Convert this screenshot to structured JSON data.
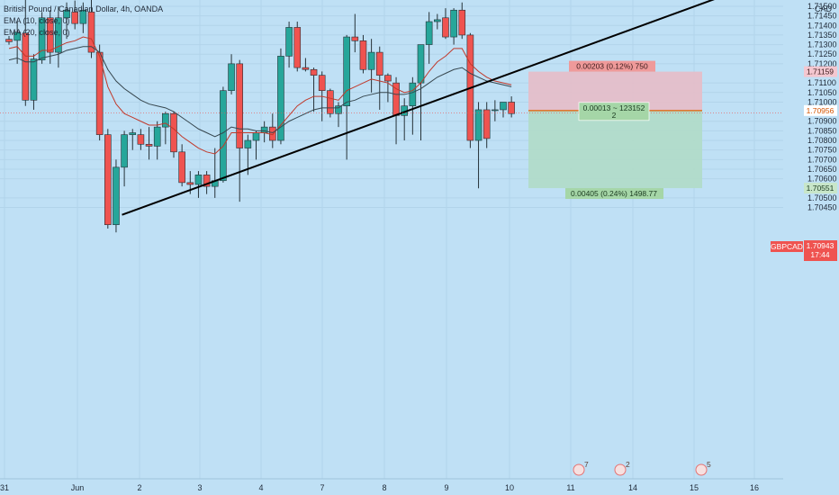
{
  "legend": {
    "symbol_line": "British Pound / Canadian Dollar, 4h, OANDA",
    "ema10": "EMA (10, close, 0)",
    "ema20": "EMA (20, close, 0)"
  },
  "price_axis": {
    "currency": "CAD",
    "labels": [
      "1.71500",
      "1.71450",
      "1.71400",
      "1.71350",
      "1.71300",
      "1.71250",
      "1.71200",
      "1.71100",
      "1.71050",
      "1.71000",
      "1.70900",
      "1.70850",
      "1.70800",
      "1.70750",
      "1.70700",
      "1.70650",
      "1.70600",
      "1.70500",
      "1.70450"
    ]
  },
  "time_axis": {
    "labels": [
      "31",
      "Jun",
      "2",
      "3",
      "4",
      "7",
      "8",
      "9",
      "10",
      "11",
      "14",
      "15",
      "16"
    ]
  },
  "position_tool": {
    "target_label": "0.00203 (0.12%) 750",
    "entry_label_1": "0.00013 ~ 123152",
    "entry_label_2": "2",
    "stop_label": "0.00405 (0.24%) 1498.77"
  },
  "price_tags": {
    "top": "1.71159",
    "entry": "1.70956",
    "symbol": "GBPCAD",
    "current": "1.70943",
    "countdown": "17:44",
    "bottom": "1.70551"
  },
  "events": [
    "7",
    "2",
    "5"
  ],
  "colors": {
    "background": "#bfe0f5",
    "bull": "#26a69a",
    "bear": "#ef5350",
    "ema10": "#c0392b",
    "ema20": "#37474f",
    "trendline": "#000000",
    "target_zone": "#e7bcc8",
    "stop_zone": "#b0dcc8"
  },
  "chart_data": {
    "type": "candlestick",
    "symbol": "GBPCAD",
    "timeframe": "4h",
    "series": [
      {
        "name": "GBPCAD",
        "ohlc": [
          [
            1.71328,
            1.71345,
            1.713,
            1.71315
          ],
          [
            1.71322,
            1.7142,
            1.712,
            1.71365
          ],
          [
            1.7136,
            1.7154,
            1.7098,
            1.7101
          ],
          [
            1.7101,
            1.7125,
            1.7096,
            1.71225
          ],
          [
            1.7122,
            1.7147,
            1.712,
            1.7144
          ],
          [
            1.7144,
            1.7148,
            1.712,
            1.7126
          ],
          [
            1.7126,
            1.715,
            1.7118,
            1.7144
          ],
          [
            1.7144,
            1.7152,
            1.7133,
            1.7148
          ],
          [
            1.7147,
            1.7153,
            1.7138,
            1.7141
          ],
          [
            1.7141,
            1.7152,
            1.7136,
            1.7148
          ],
          [
            1.7147,
            1.7154,
            1.7123,
            1.7126
          ],
          [
            1.7126,
            1.713,
            1.708,
            1.7083
          ],
          [
            1.7083,
            1.7086,
            1.7034,
            1.7036
          ],
          [
            1.7036,
            1.707,
            1.7032,
            1.7066
          ],
          [
            1.7066,
            1.7085,
            1.7056,
            1.7083
          ],
          [
            1.7083,
            1.7086,
            1.7075,
            1.7084
          ],
          [
            1.7083,
            1.7086,
            1.7075,
            1.7078
          ],
          [
            1.7078,
            1.7087,
            1.707,
            1.7077
          ],
          [
            1.7077,
            1.709,
            1.707,
            1.7087
          ],
          [
            1.7087,
            1.7095,
            1.7078,
            1.7094
          ],
          [
            1.7094,
            1.7095,
            1.7071,
            1.7074
          ],
          [
            1.7074,
            1.7078,
            1.7056,
            1.7058
          ],
          [
            1.7058,
            1.7064,
            1.7052,
            1.7057
          ],
          [
            1.7057,
            1.7064,
            1.705,
            1.7062
          ],
          [
            1.7062,
            1.7064,
            1.7052,
            1.7056
          ],
          [
            1.7056,
            1.7076,
            1.705,
            1.7059
          ],
          [
            1.7059,
            1.7108,
            1.7058,
            1.7106
          ],
          [
            1.7106,
            1.7125,
            1.7104,
            1.712
          ],
          [
            1.712,
            1.7122,
            1.7048,
            1.7076
          ],
          [
            1.7076,
            1.7083,
            1.7062,
            1.708
          ],
          [
            1.708,
            1.7085,
            1.707,
            1.7084
          ],
          [
            1.7084,
            1.709,
            1.7079,
            1.7087
          ],
          [
            1.7087,
            1.7094,
            1.7076,
            1.708
          ],
          [
            1.708,
            1.7128,
            1.7078,
            1.7124
          ],
          [
            1.7124,
            1.7142,
            1.7118,
            1.7139
          ],
          [
            1.7139,
            1.7142,
            1.7116,
            1.7118
          ],
          [
            1.7118,
            1.7123,
            1.7116,
            1.7117
          ],
          [
            1.7117,
            1.7118,
            1.7095,
            1.7114
          ],
          [
            1.7114,
            1.7116,
            1.709,
            1.7106
          ],
          [
            1.7106,
            1.7107,
            1.7092,
            1.7094
          ],
          [
            1.7094,
            1.71,
            1.7087,
            1.7098
          ],
          [
            1.7098,
            1.7135,
            1.707,
            1.7134
          ],
          [
            1.7134,
            1.7146,
            1.7126,
            1.7132
          ],
          [
            1.7132,
            1.7135,
            1.7115,
            1.7117
          ],
          [
            1.7117,
            1.7133,
            1.7105,
            1.7126
          ],
          [
            1.7126,
            1.7129,
            1.7096,
            1.7114
          ],
          [
            1.7114,
            1.7115,
            1.71,
            1.7111
          ],
          [
            1.711,
            1.7113,
            1.7078,
            1.7093
          ],
          [
            1.7093,
            1.7102,
            1.708,
            1.7098
          ],
          [
            1.7098,
            1.7113,
            1.7083,
            1.711
          ],
          [
            1.711,
            1.713,
            1.708,
            1.713
          ],
          [
            1.713,
            1.7147,
            1.712,
            1.7142
          ],
          [
            1.7142,
            1.7146,
            1.7138,
            1.7143
          ],
          [
            1.7144,
            1.7149,
            1.7133,
            1.7134
          ],
          [
            1.7134,
            1.7149,
            1.713,
            1.7148
          ],
          [
            1.7148,
            1.7152,
            1.7133,
            1.7135
          ],
          [
            1.7135,
            1.7136,
            1.7076,
            1.708
          ],
          [
            1.708,
            1.71,
            1.7055,
            1.7096
          ],
          [
            1.7096,
            1.71,
            1.7076,
            1.7081
          ],
          [
            1.7096,
            1.7101,
            1.709,
            1.7096
          ],
          [
            1.7096,
            1.71,
            1.7092,
            1.71
          ],
          [
            1.71,
            1.7103,
            1.7092,
            1.7094
          ]
        ]
      },
      {
        "name": "EMA (10, close, 0)",
        "values": [
          1.7128,
          1.7129,
          1.7124,
          1.7124,
          1.7127,
          1.7127,
          1.7129,
          1.7131,
          1.7132,
          1.7134,
          1.7133,
          1.7124,
          1.7108,
          1.7099,
          1.7094,
          1.7092,
          1.709,
          1.7088,
          1.7088,
          1.7089,
          1.7086,
          1.7082,
          1.7079,
          1.7076,
          1.7074,
          1.7073,
          1.7077,
          1.7084,
          1.7084,
          1.7084,
          1.7084,
          1.7084,
          1.7083,
          1.7088,
          1.7093,
          1.7098,
          1.7101,
          1.7103,
          1.7103,
          1.7102,
          1.7101,
          1.7106,
          1.7108,
          1.711,
          1.7112,
          1.7111,
          1.711,
          1.7107,
          1.7105,
          1.7106,
          1.711,
          1.7116,
          1.7121,
          1.7124,
          1.7128,
          1.7128,
          1.712,
          1.7116,
          1.7113,
          1.7111,
          1.711,
          1.7109
        ]
      },
      {
        "name": "EMA (20, close, 0)",
        "values": [
          1.7122,
          1.7123,
          1.7121,
          1.7121,
          1.7123,
          1.7124,
          1.7125,
          1.7127,
          1.7128,
          1.7129,
          1.7129,
          1.7126,
          1.7117,
          1.7111,
          1.7107,
          1.7104,
          1.7101,
          1.7099,
          1.7098,
          1.7097,
          1.7095,
          1.7092,
          1.7089,
          1.7086,
          1.7084,
          1.7082,
          1.7084,
          1.7087,
          1.7086,
          1.7086,
          1.7085,
          1.7085,
          1.7084,
          1.7087,
          1.709,
          1.7092,
          1.7094,
          1.7096,
          1.7097,
          1.7097,
          1.7097,
          1.71,
          1.7101,
          1.7103,
          1.7104,
          1.7105,
          1.7105,
          1.7104,
          1.7104,
          1.7105,
          1.7107,
          1.711,
          1.7113,
          1.7115,
          1.7117,
          1.7118,
          1.7115,
          1.7113,
          1.7111,
          1.711,
          1.7109,
          1.7108
        ]
      }
    ],
    "trendline": {
      "from": [
        1.70412,
        0
      ],
      "to": [
        1.7159,
        0
      ],
      "note_bars": [
        17,
        116
      ]
    },
    "position": {
      "entry": 1.70956,
      "target": 1.71159,
      "stop": 1.70551
    },
    "ylim": [
      1.7042,
      1.7152
    ],
    "grid": true,
    "legend_placement": "top-left"
  }
}
